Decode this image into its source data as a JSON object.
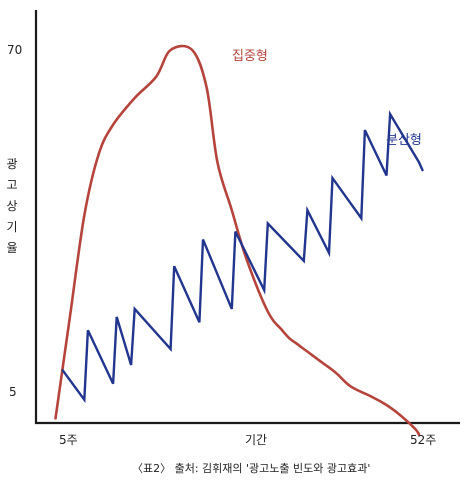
{
  "caption": "〈표2〉 출처: 김휘재의 '광고노출 빈도와 광고효과'",
  "colors": {
    "axis": "#1a1a1a",
    "concentrated": "#b5443c",
    "distributed": "#22368f",
    "text": "#222222"
  },
  "chart_data": {
    "type": "line",
    "xlabel": "기간",
    "ylabel": "광고상기율",
    "xlim": [
      1,
      52
    ],
    "ylim": [
      0,
      75
    ],
    "x_ticks": [
      {
        "value": 5,
        "label": "5주"
      },
      {
        "value": 52,
        "label": "52주"
      }
    ],
    "y_ticks": [
      {
        "value": 5,
        "label": "5"
      },
      {
        "value": 70,
        "label": "70"
      }
    ],
    "grid": false,
    "series": [
      {
        "name": "집중형",
        "color": "#b5443c",
        "smooth": true,
        "x": [
          1,
          3,
          5,
          7,
          9,
          12,
          15,
          17,
          20,
          22,
          23.5,
          25.5,
          27.5,
          30.5,
          32.5,
          33.5,
          34.5,
          35.5,
          36.5,
          38,
          40,
          42,
          45,
          47,
          49,
          51,
          51.5
        ],
        "y": [
          1,
          20,
          39,
          50.5,
          56,
          61,
          65,
          70,
          70,
          63,
          49,
          40,
          31,
          21,
          17.5,
          16,
          15,
          14,
          13,
          11.5,
          9.5,
          7,
          5,
          3.5,
          1.5,
          -1,
          -2
        ]
      },
      {
        "name": "분산형",
        "color": "#22368f",
        "smooth": false,
        "x": [
          2,
          5,
          5.5,
          9,
          9.5,
          11.5,
          12,
          17,
          17.5,
          21,
          21.5,
          25.5,
          26,
          30,
          30.5,
          35.5,
          36,
          39,
          39.5,
          43.5,
          44,
          47,
          47.5,
          51.5,
          52
        ],
        "y": [
          10,
          4.5,
          17.5,
          7.5,
          20,
          11,
          21.5,
          14,
          29.5,
          19,
          34.5,
          21.5,
          36,
          25,
          37.5,
          30.5,
          40,
          32,
          46,
          38.5,
          55,
          46.5,
          58,
          49,
          47.5
        ]
      }
    ]
  }
}
